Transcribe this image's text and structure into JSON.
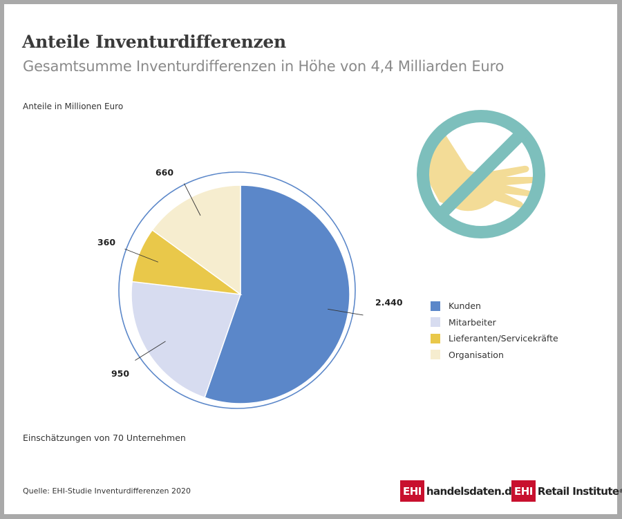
{
  "title": "Anteile Inventurdifferenzen",
  "subtitle": "Gesamtsumme Inventurdifferenzen in Höhe von 4,4 Milliarden Euro",
  "unit_label": "Anteile in Millionen Euro",
  "note": "Einschätzungen von 70 Unternehmen",
  "source": "Quelle: EHI-Studie Inventurdifferenzen 2020",
  "logos": {
    "handelsdaten": {
      "box": "EHI",
      "text": "handelsdaten.de"
    },
    "retail": {
      "box": "EHI",
      "text": "Retail Institute",
      "mark": "®"
    }
  },
  "icon": "no-theft-hand-icon",
  "colors": {
    "Kunden": "#5b87c9",
    "Mitarbeiter": "#d7dcf0",
    "Lieferanten/Servicekräfte": "#e9c84a",
    "Organisation": "#f6edcf",
    "ring": "#5b87c9",
    "icon_circle": "#7dbfbc",
    "icon_hand": "#f3dc97"
  },
  "chart_data": {
    "type": "pie",
    "title": "Anteile Inventurdifferenzen",
    "subtitle": "Gesamtsumme Inventurdifferenzen in Höhe von 4,4 Milliarden Euro",
    "unit": "Anteile in Millionen Euro",
    "categories": [
      "Kunden",
      "Mitarbeiter",
      "Lieferanten/Servicekräfte",
      "Organisation"
    ],
    "values": [
      2440,
      950,
      360,
      660
    ],
    "value_labels": [
      "2.440",
      "950",
      "360",
      "660"
    ],
    "legend_position": "right"
  }
}
